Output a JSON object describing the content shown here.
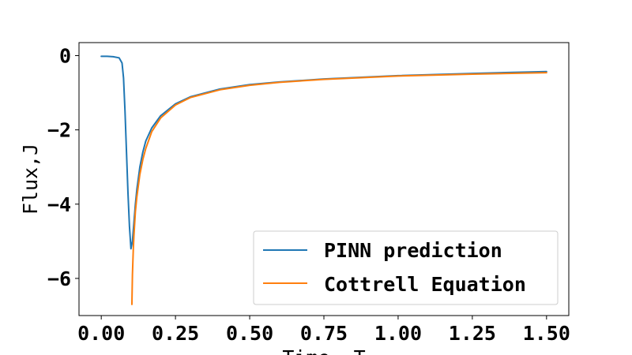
{
  "chart_data": {
    "type": "line",
    "title": "",
    "xlabel": "Time, T",
    "ylabel": "Flux,J",
    "xlim": [
      -0.075,
      1.575
    ],
    "ylim": [
      -7.0,
      0.35
    ],
    "x_ticks": [
      {
        "value": 0.0,
        "label": "0.00"
      },
      {
        "value": 0.25,
        "label": "0.25"
      },
      {
        "value": 0.5,
        "label": "0.50"
      },
      {
        "value": 0.75,
        "label": "0.75"
      },
      {
        "value": 1.0,
        "label": "1.00"
      },
      {
        "value": 1.25,
        "label": "1.25"
      },
      {
        "value": 1.5,
        "label": "1.50"
      }
    ],
    "y_ticks": [
      {
        "value": 0,
        "label": "0"
      },
      {
        "value": -2,
        "label": "−2"
      },
      {
        "value": -4,
        "label": "−4"
      },
      {
        "value": -6,
        "label": "−6"
      }
    ],
    "grid": false,
    "legend": {
      "position": "lower-right"
    },
    "series": [
      {
        "name": "PINN prediction",
        "color": "#1f77b4",
        "x": [
          0.0,
          0.02,
          0.04,
          0.06,
          0.07,
          0.075,
          0.08,
          0.085,
          0.09,
          0.095,
          0.1,
          0.105,
          0.11,
          0.115,
          0.12,
          0.13,
          0.14,
          0.15,
          0.17,
          0.2,
          0.25,
          0.3,
          0.4,
          0.5,
          0.6,
          0.75,
          1.0,
          1.25,
          1.5
        ],
        "y": [
          -0.02,
          -0.02,
          -0.03,
          -0.06,
          -0.2,
          -0.6,
          -1.5,
          -2.6,
          -3.7,
          -4.6,
          -5.2,
          -5.0,
          -4.5,
          -4.0,
          -3.6,
          -3.0,
          -2.6,
          -2.3,
          -1.95,
          -1.62,
          -1.3,
          -1.11,
          -0.9,
          -0.78,
          -0.71,
          -0.63,
          -0.54,
          -0.48,
          -0.43
        ]
      },
      {
        "name": "Cottrell Equation",
        "color": "#ff7f0e",
        "x": [
          0.1032,
          0.105,
          0.108,
          0.11,
          0.115,
          0.12,
          0.13,
          0.14,
          0.15,
          0.17,
          0.2,
          0.25,
          0.3,
          0.4,
          0.5,
          0.6,
          0.75,
          1.0,
          1.25,
          1.5
        ],
        "y": [
          -6.7,
          -5.9,
          -5.2,
          -4.85,
          -4.2,
          -3.8,
          -3.2,
          -2.8,
          -2.5,
          -2.05,
          -1.68,
          -1.33,
          -1.13,
          -0.92,
          -0.8,
          -0.72,
          -0.64,
          -0.55,
          -0.5,
          -0.46
        ]
      }
    ]
  }
}
